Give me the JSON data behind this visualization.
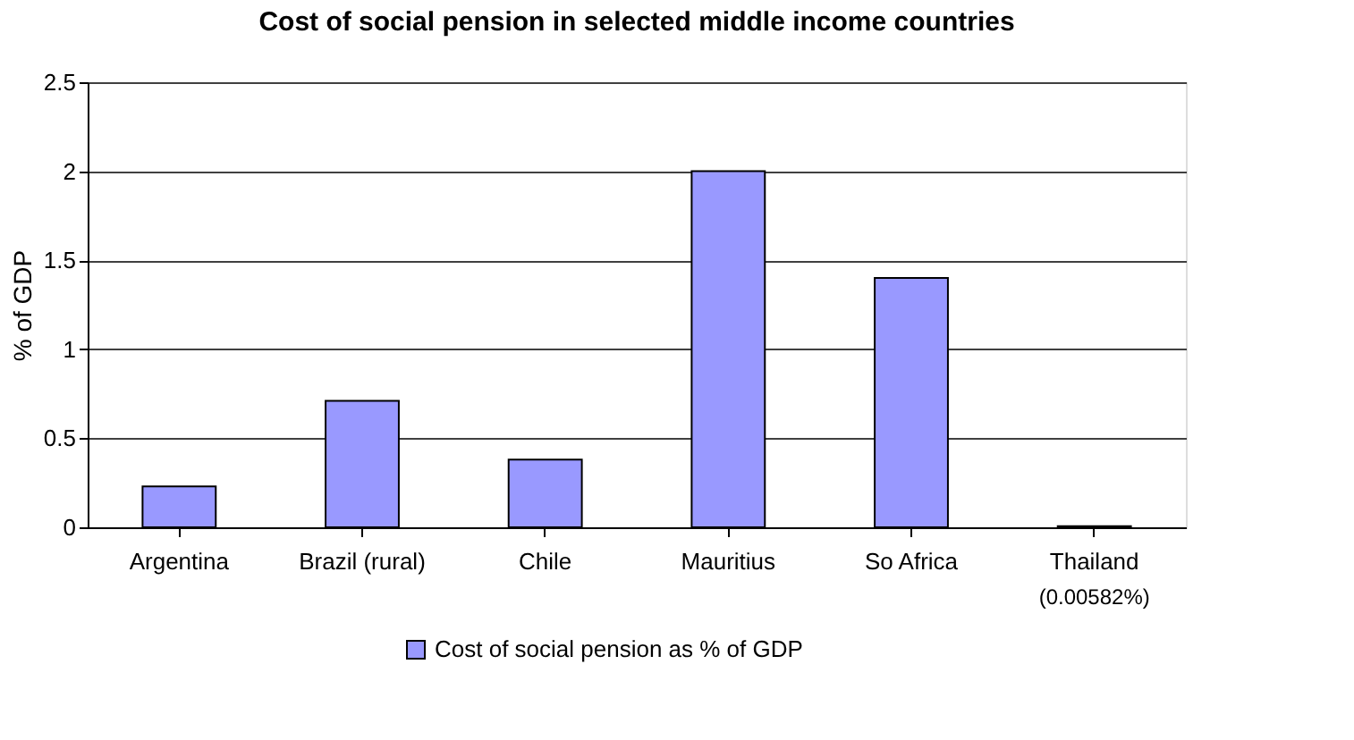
{
  "chart_data": {
    "type": "bar",
    "title": "Cost of social pension in selected middle income countries",
    "categories": [
      "Argentina",
      "Brazil (rural)",
      "Chile",
      "Mauritius",
      "So Africa",
      "Thailand"
    ],
    "series": [
      {
        "name": "Cost of social pension as % of GDP",
        "color": "#9999ff",
        "values": [
          0.23,
          0.71,
          0.38,
          2.0,
          1.4,
          0.00582
        ]
      }
    ],
    "ylabel": "% of GDP",
    "ylim": [
      0,
      2.5
    ],
    "yticks": [
      0,
      0.5,
      1,
      1.5,
      2,
      2.5
    ],
    "grid": "y",
    "legend": "bottom",
    "annotations": [
      "(0.00582%)"
    ]
  }
}
